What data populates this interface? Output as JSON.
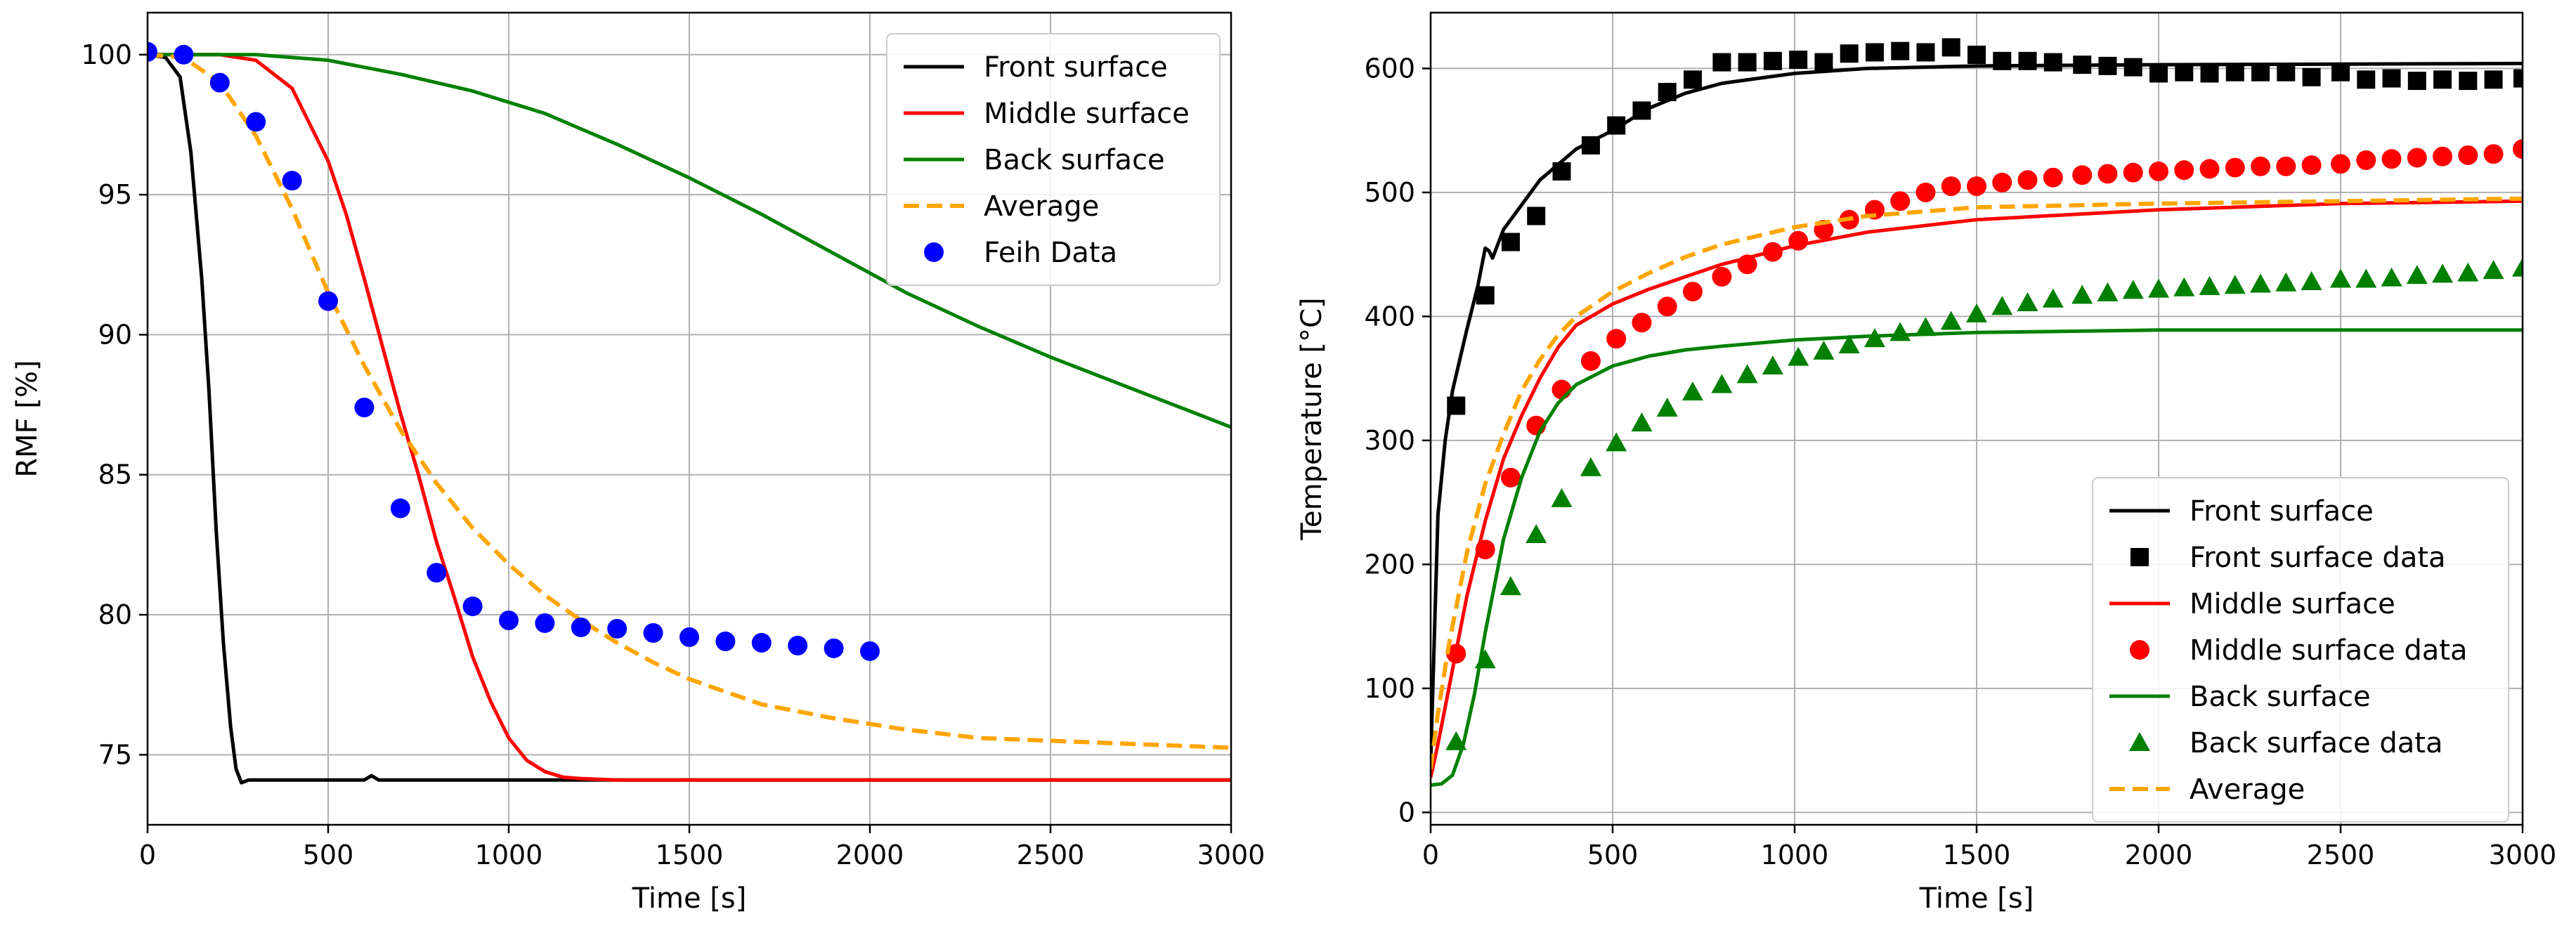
{
  "chart_data": [
    {
      "type": "line",
      "title": "",
      "xlabel": "Time [s]",
      "ylabel": "RMF [%]",
      "xlim": [
        0,
        3000
      ],
      "ylim": [
        72.5,
        101.5
      ],
      "xticks": [
        0,
        500,
        1000,
        1500,
        2000,
        2500,
        3000
      ],
      "yticks": [
        75,
        80,
        85,
        90,
        95,
        100
      ],
      "grid": true,
      "legend_position": "top-right",
      "series": [
        {
          "name": "Front surface",
          "style": "line",
          "color": "#000000",
          "x": [
            0,
            50,
            90,
            120,
            150,
            170,
            190,
            210,
            230,
            245,
            260,
            280,
            320,
            600,
            620,
            640,
            800,
            3000
          ],
          "y": [
            100,
            99.9,
            99.2,
            96.5,
            92,
            88,
            83,
            79,
            76,
            74.5,
            74.0,
            74.1,
            74.1,
            74.1,
            74.25,
            74.1,
            74.1,
            74.1
          ]
        },
        {
          "name": "Middle surface",
          "style": "line",
          "color": "#ff0000",
          "x": [
            0,
            200,
            300,
            400,
            500,
            550,
            600,
            650,
            700,
            750,
            800,
            850,
            900,
            950,
            1000,
            1050,
            1100,
            1150,
            1200,
            1300,
            1500,
            3000
          ],
          "y": [
            100,
            100,
            99.8,
            98.8,
            96.2,
            94.3,
            92.0,
            89.6,
            87.2,
            85.0,
            82.6,
            80.6,
            78.5,
            76.9,
            75.6,
            74.8,
            74.4,
            74.2,
            74.15,
            74.1,
            74.1,
            74.1
          ]
        },
        {
          "name": "Back surface",
          "style": "line",
          "color": "#008000",
          "x": [
            0,
            300,
            500,
            700,
            900,
            1100,
            1300,
            1500,
            1700,
            1900,
            2100,
            2300,
            2500,
            2700,
            2900,
            3000
          ],
          "y": [
            100,
            100,
            99.8,
            99.3,
            98.7,
            97.9,
            96.8,
            95.6,
            94.3,
            92.9,
            91.5,
            90.3,
            89.2,
            88.2,
            87.2,
            86.7
          ]
        },
        {
          "name": "Average",
          "style": "dashed",
          "color": "#ffa500",
          "x": [
            0,
            100,
            200,
            300,
            400,
            500,
            600,
            700,
            800,
            900,
            1000,
            1100,
            1200,
            1300,
            1400,
            1500,
            1700,
            1900,
            2100,
            2300,
            2500,
            2700,
            2900,
            3000
          ],
          "y": [
            100,
            99.9,
            99.0,
            97.1,
            94.5,
            91.5,
            88.9,
            86.6,
            84.7,
            83.1,
            81.8,
            80.7,
            79.8,
            79.0,
            78.3,
            77.7,
            76.8,
            76.3,
            75.9,
            75.6,
            75.5,
            75.4,
            75.3,
            75.25
          ]
        },
        {
          "name": "Feih Data",
          "style": "markers",
          "marker": "circle",
          "color": "#0000ff",
          "x": [
            0,
            100,
            200,
            300,
            400,
            500,
            600,
            700,
            800,
            900,
            1000,
            1100,
            1200,
            1300,
            1400,
            1500,
            1600,
            1700,
            1800,
            1900,
            2000
          ],
          "y": [
            100.1,
            100,
            99.0,
            97.6,
            95.5,
            91.2,
            87.4,
            83.8,
            81.5,
            80.3,
            79.8,
            79.7,
            79.55,
            79.5,
            79.35,
            79.2,
            79.05,
            79.0,
            78.9,
            78.8,
            78.7
          ]
        }
      ]
    },
    {
      "type": "line",
      "title": "",
      "xlabel": "Time [s]",
      "ylabel": "Temperature [°C]",
      "xlim": [
        0,
        3000
      ],
      "ylim": [
        -10,
        645
      ],
      "xticks": [
        0,
        500,
        1000,
        1500,
        2000,
        2500,
        3000
      ],
      "yticks": [
        0,
        100,
        200,
        300,
        400,
        500,
        600
      ],
      "grid": true,
      "legend_position": "bottom-right",
      "series": [
        {
          "name": "Front surface",
          "style": "line",
          "color": "#000000",
          "x": [
            0,
            20,
            40,
            60,
            80,
            100,
            130,
            150,
            160,
            170,
            200,
            250,
            300,
            400,
            500,
            600,
            700,
            800,
            900,
            1000,
            1200,
            1500,
            2000,
            3000
          ],
          "y": [
            40,
            240,
            300,
            340,
            365,
            390,
            425,
            455,
            453,
            447,
            470,
            490,
            510,
            535,
            550,
            568,
            580,
            588,
            592,
            596,
            600,
            602,
            603,
            604
          ]
        },
        {
          "name": "Front surface data",
          "style": "markers",
          "marker": "square",
          "color": "#000000",
          "x": [
            70,
            150,
            220,
            290,
            360,
            440,
            510,
            580,
            650,
            720,
            800,
            870,
            940,
            1010,
            1080,
            1150,
            1220,
            1290,
            1360,
            1430,
            1500,
            1570,
            1640,
            1710,
            1790,
            1860,
            1930,
            2000,
            2070,
            2140,
            2210,
            2280,
            2350,
            2420,
            2500,
            2570,
            2640,
            2710,
            2780,
            2850,
            2920,
            3000
          ],
          "y": [
            328,
            417,
            460,
            481,
            517,
            538,
            554,
            566,
            581,
            591,
            605,
            605,
            606,
            607,
            605,
            612,
            613,
            614,
            613,
            617,
            611,
            606,
            606,
            605,
            603,
            602,
            601,
            596,
            597,
            596,
            597,
            597,
            597,
            593,
            597,
            591,
            592,
            590,
            591,
            590,
            591,
            592
          ]
        },
        {
          "name": "Middle surface",
          "style": "line",
          "color": "#ff0000",
          "x": [
            0,
            20,
            50,
            100,
            150,
            200,
            250,
            300,
            350,
            400,
            500,
            600,
            700,
            800,
            1000,
            1200,
            1500,
            2000,
            2500,
            3000
          ],
          "y": [
            28,
            55,
            100,
            175,
            235,
            285,
            320,
            350,
            375,
            393,
            410,
            422,
            432,
            442,
            457,
            468,
            478,
            486,
            491,
            493
          ]
        },
        {
          "name": "Middle surface data",
          "style": "markers",
          "marker": "circle",
          "color": "#ff0000",
          "x": [
            70,
            150,
            220,
            290,
            360,
            440,
            510,
            580,
            650,
            720,
            800,
            870,
            940,
            1010,
            1080,
            1150,
            1220,
            1290,
            1360,
            1430,
            1500,
            1570,
            1640,
            1710,
            1790,
            1860,
            1930,
            2000,
            2070,
            2140,
            2210,
            2280,
            2350,
            2420,
            2500,
            2570,
            2640,
            2710,
            2780,
            2850,
            2920,
            3000
          ],
          "y": [
            128,
            212,
            270,
            312,
            341,
            364,
            382,
            395,
            408,
            420,
            432,
            442,
            452,
            461,
            470,
            478,
            486,
            493,
            500,
            505,
            505,
            508,
            510,
            512,
            514,
            515,
            516,
            517,
            518,
            519,
            520,
            521,
            521,
            522,
            523,
            526,
            527,
            528,
            529,
            530,
            531,
            535
          ]
        },
        {
          "name": "Back surface",
          "style": "line",
          "color": "#008000",
          "x": [
            0,
            30,
            60,
            90,
            120,
            150,
            200,
            250,
            300,
            350,
            400,
            500,
            600,
            700,
            800,
            1000,
            1200,
            1500,
            2000,
            2500,
            3000
          ],
          "y": [
            22,
            23,
            30,
            55,
            95,
            145,
            220,
            270,
            307,
            330,
            345,
            360,
            368,
            373,
            376,
            381,
            384,
            387,
            389,
            389,
            389
          ]
        },
        {
          "name": "Back surface data",
          "style": "markers",
          "marker": "triangle",
          "color": "#008000",
          "x": [
            70,
            150,
            220,
            290,
            360,
            440,
            510,
            580,
            650,
            720,
            800,
            870,
            940,
            1010,
            1080,
            1150,
            1220,
            1290,
            1360,
            1430,
            1500,
            1570,
            1640,
            1710,
            1790,
            1860,
            1930,
            2000,
            2070,
            2140,
            2210,
            2280,
            2350,
            2420,
            2500,
            2570,
            2640,
            2710,
            2780,
            2850,
            2920,
            3000
          ],
          "y": [
            57,
            123,
            182,
            224,
            253,
            278,
            298,
            314,
            326,
            339,
            345,
            353,
            360,
            367,
            372,
            377,
            382,
            387,
            391,
            396,
            402,
            408,
            411,
            414,
            417,
            419,
            421,
            422,
            423,
            424,
            425,
            426,
            427,
            428,
            430,
            430,
            431,
            433,
            434,
            435,
            437,
            439
          ]
        },
        {
          "name": "Average",
          "style": "dashed",
          "color": "#ffa500",
          "x": [
            0,
            20,
            50,
            100,
            150,
            200,
            250,
            300,
            350,
            400,
            500,
            600,
            700,
            800,
            1000,
            1200,
            1500,
            2000,
            2500,
            3000
          ],
          "y": [
            35,
            80,
            135,
            210,
            265,
            305,
            340,
            365,
            385,
            400,
            420,
            435,
            448,
            458,
            472,
            481,
            488,
            491,
            493,
            495
          ]
        }
      ]
    }
  ]
}
